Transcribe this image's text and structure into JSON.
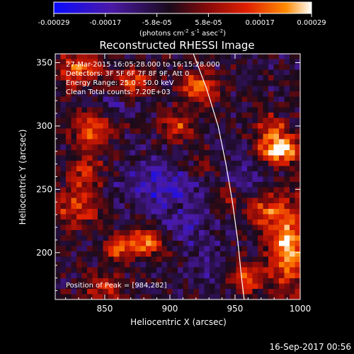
{
  "colors": {
    "background": "#000000",
    "text": "#ffffff",
    "colormap": [
      "#0a0aff",
      "#4a1aa8",
      "#1a0a1a",
      "#8a0a0a",
      "#e02000",
      "#ff8a00",
      "#ffffff"
    ]
  },
  "footer": {
    "date": "16-Sep-2017 00:56"
  },
  "chart_data": {
    "type": "heatmap",
    "title": "Reconstructed RHESSI Image",
    "xlabel": "Heliocentric X (arcsec)",
    "ylabel": "Heliocentric Y (arcsec)",
    "xlim": [
      812,
      1000
    ],
    "ylim": [
      163,
      357
    ],
    "x_ticks": [
      850,
      900,
      950,
      1000
    ],
    "y_ticks": [
      200,
      250,
      300,
      350
    ],
    "colorbar": {
      "range": [
        -0.00029,
        0.00029
      ],
      "ticks": [
        "-0.00029",
        "-0.00017",
        "-5.8e-05",
        "5.8e-05",
        "0.00017",
        "0.00029"
      ],
      "unit_label_parts": [
        "(photons cm",
        "-2",
        " s",
        "-1",
        " asec",
        "-2",
        ")"
      ]
    },
    "info_lines": [
      "27-Mar-2015 16:05:28.000 to 16:15:28.000",
      "Detectors: 3F 5F 6F 7F 8F 9F, Att 0",
      "Energy Range: 25.0 - 50.0 keV",
      "Clean    Total counts: 7.20E+03"
    ],
    "peak_label": "Position of Peak = [984,282]",
    "peak": [
      984,
      282
    ],
    "limb": [
      [
        918,
        357
      ],
      [
        928,
        330
      ],
      [
        937,
        300
      ],
      [
        943,
        270
      ],
      [
        948,
        240
      ],
      [
        952,
        210
      ],
      [
        955,
        180
      ],
      [
        957,
        163
      ]
    ],
    "blobs": [
      {
        "x": 984,
        "y": 282,
        "sx": 11,
        "sy": 8,
        "a": 1.0
      },
      {
        "x": 978,
        "y": 300,
        "sx": 7,
        "sy": 6,
        "a": 0.55
      },
      {
        "x": 990,
        "y": 205,
        "sx": 10,
        "sy": 24,
        "a": 0.85
      },
      {
        "x": 972,
        "y": 232,
        "sx": 9,
        "sy": 10,
        "a": 0.5
      },
      {
        "x": 960,
        "y": 180,
        "sx": 9,
        "sy": 9,
        "a": 0.55
      },
      {
        "x": 922,
        "y": 330,
        "sx": 10,
        "sy": 9,
        "a": 0.7
      },
      {
        "x": 905,
        "y": 300,
        "sx": 9,
        "sy": 8,
        "a": 0.55
      },
      {
        "x": 870,
        "y": 335,
        "sx": 10,
        "sy": 8,
        "a": 0.6
      },
      {
        "x": 830,
        "y": 345,
        "sx": 12,
        "sy": 10,
        "a": 0.6
      },
      {
        "x": 840,
        "y": 298,
        "sx": 12,
        "sy": 10,
        "a": 0.6
      },
      {
        "x": 835,
        "y": 265,
        "sx": 10,
        "sy": 10,
        "a": 0.5
      },
      {
        "x": 828,
        "y": 235,
        "sx": 14,
        "sy": 10,
        "a": 0.55
      },
      {
        "x": 880,
        "y": 208,
        "sx": 10,
        "sy": 8,
        "a": 0.75
      },
      {
        "x": 860,
        "y": 203,
        "sx": 7,
        "sy": 7,
        "a": 0.5
      },
      {
        "x": 850,
        "y": 172,
        "sx": 12,
        "sy": 8,
        "a": 0.45
      },
      {
        "x": 945,
        "y": 245,
        "sx": 7,
        "sy": 9,
        "a": 0.35
      },
      {
        "x": 925,
        "y": 268,
        "sx": 8,
        "sy": 8,
        "a": 0.3
      }
    ],
    "dips": [
      {
        "x": 893,
        "y": 252,
        "sx": 22,
        "sy": 14,
        "a": 0.7
      },
      {
        "x": 955,
        "y": 258,
        "sx": 11,
        "sy": 10,
        "a": 0.5
      },
      {
        "x": 913,
        "y": 218,
        "sx": 14,
        "sy": 10,
        "a": 0.5
      },
      {
        "x": 856,
        "y": 318,
        "sx": 12,
        "sy": 8,
        "a": 0.35
      },
      {
        "x": 930,
        "y": 190,
        "sx": 10,
        "sy": 10,
        "a": 0.4
      }
    ]
  }
}
